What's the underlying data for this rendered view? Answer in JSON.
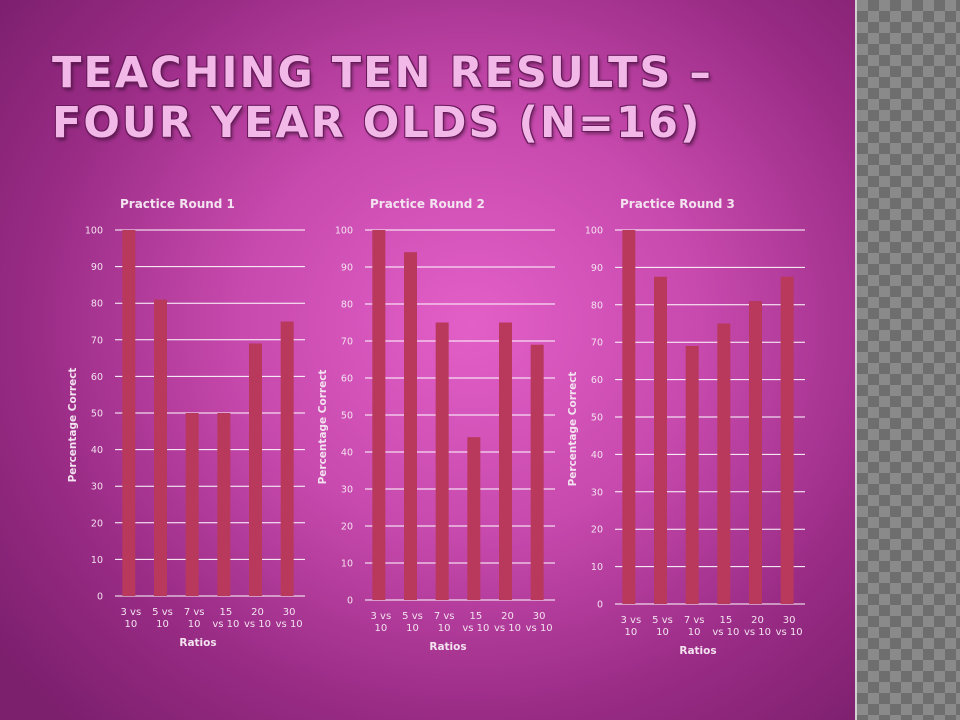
{
  "slide": {
    "title": "Teaching Ten Results – Four Year Olds (N=16)"
  },
  "colors": {
    "bar": "#b8395c",
    "gridline": "#ffffff"
  },
  "chart_data": [
    {
      "type": "bar",
      "title": "Practice Round 1",
      "xlabel": "Ratios",
      "ylabel": "Percentage Correct",
      "ylim": [
        0,
        100
      ],
      "yticks": [
        0,
        10,
        20,
        30,
        40,
        50,
        60,
        70,
        80,
        90,
        100
      ],
      "grid": true,
      "categories": [
        [
          "3 vs",
          "10"
        ],
        [
          "5 vs",
          "10"
        ],
        [
          "7 vs",
          "10"
        ],
        [
          "15",
          "vs 10"
        ],
        [
          "20",
          "vs 10"
        ],
        [
          "30",
          "vs 10"
        ]
      ],
      "values": [
        100,
        81,
        50,
        50,
        69,
        75
      ]
    },
    {
      "type": "bar",
      "title": "Practice Round 2",
      "xlabel": "Ratios",
      "ylabel": "Percentage Correct",
      "ylim": [
        0,
        100
      ],
      "yticks": [
        0,
        10,
        20,
        30,
        40,
        50,
        60,
        70,
        80,
        90,
        100
      ],
      "grid": true,
      "categories": [
        [
          "3 vs",
          "10"
        ],
        [
          "5 vs",
          "10"
        ],
        [
          "7 vs",
          "10"
        ],
        [
          "15",
          "vs 10"
        ],
        [
          "20",
          "vs 10"
        ],
        [
          "30",
          "vs 10"
        ]
      ],
      "values": [
        100,
        94,
        75,
        44,
        75,
        69
      ]
    },
    {
      "type": "bar",
      "title": "Practice Round 3",
      "xlabel": "Ratios",
      "ylabel": "Percentage Correct",
      "ylim": [
        0,
        100
      ],
      "yticks": [
        0,
        10,
        20,
        30,
        40,
        50,
        60,
        70,
        80,
        90,
        100
      ],
      "grid": true,
      "categories": [
        [
          "3 vs",
          "10"
        ],
        [
          "5 vs",
          "10"
        ],
        [
          "7 vs",
          "10"
        ],
        [
          "15",
          "vs 10"
        ],
        [
          "20",
          "vs 10"
        ],
        [
          "30",
          "vs 10"
        ]
      ],
      "values": [
        100,
        87.5,
        69,
        75,
        81,
        87.5
      ]
    }
  ]
}
